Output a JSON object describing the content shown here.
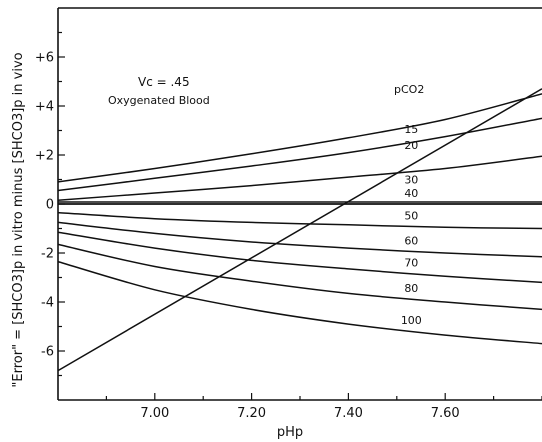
{
  "chart_data": {
    "type": "line",
    "title": "",
    "xlabel": "pHp",
    "ylabel": "\"Error\" = [SHCO3]p in vitro minus [SHCO3]p in vivo",
    "xlim": [
      6.8,
      7.8
    ],
    "ylim": [
      -8,
      8
    ],
    "x_ticks": [
      7.0,
      7.2,
      7.4,
      7.6
    ],
    "x_tick_labels": [
      "7.00",
      "7.20",
      "7.40",
      "7.60"
    ],
    "y_ticks": [
      6,
      4,
      2,
      0,
      -2,
      -4,
      -6
    ],
    "y_tick_labels": [
      "+6",
      "+4",
      "+2",
      "0",
      "-2",
      "-4",
      "-6"
    ],
    "grid": false,
    "legend_title": "pCO2",
    "annotations": [
      "Vc = .45",
      "Oxygenated Blood"
    ],
    "series": [
      {
        "name": "15",
        "x": [
          6.8,
          7.0,
          7.2,
          7.4,
          7.6,
          7.8
        ],
        "y": [
          0.9,
          1.45,
          2.05,
          2.7,
          3.45,
          4.5
        ]
      },
      {
        "name": "20",
        "x": [
          6.8,
          7.0,
          7.2,
          7.4,
          7.6,
          7.8
        ],
        "y": [
          0.55,
          1.05,
          1.55,
          2.1,
          2.75,
          3.5
        ]
      },
      {
        "name": "30",
        "x": [
          6.8,
          7.0,
          7.2,
          7.4,
          7.6,
          7.8
        ],
        "y": [
          0.15,
          0.45,
          0.75,
          1.1,
          1.45,
          1.95
        ]
      },
      {
        "name": "40",
        "x": [
          6.8,
          7.0,
          7.2,
          7.4,
          7.6,
          7.8
        ],
        "y": [
          0.08,
          0.08,
          0.08,
          0.08,
          0.08,
          0.08
        ]
      },
      {
        "name": "50",
        "x": [
          6.8,
          7.0,
          7.2,
          7.4,
          7.6,
          7.8
        ],
        "y": [
          -0.35,
          -0.6,
          -0.75,
          -0.85,
          -0.95,
          -1.0
        ]
      },
      {
        "name": "60",
        "x": [
          6.8,
          7.0,
          7.2,
          7.4,
          7.6,
          7.8
        ],
        "y": [
          -0.75,
          -1.2,
          -1.55,
          -1.8,
          -2.0,
          -2.15
        ]
      },
      {
        "name": "70",
        "x": [
          6.8,
          7.0,
          7.2,
          7.4,
          7.6,
          7.8
        ],
        "y": [
          -1.15,
          -1.8,
          -2.3,
          -2.65,
          -2.95,
          -3.2
        ]
      },
      {
        "name": "80",
        "x": [
          6.8,
          7.0,
          7.2,
          7.4,
          7.6,
          7.8
        ],
        "y": [
          -1.65,
          -2.55,
          -3.15,
          -3.65,
          -4.0,
          -4.3
        ]
      },
      {
        "name": "100",
        "x": [
          6.8,
          7.0,
          7.2,
          7.4,
          7.6,
          7.8
        ],
        "y": [
          -2.35,
          -3.5,
          -4.3,
          -4.9,
          -5.35,
          -5.7
        ]
      },
      {
        "name": "",
        "x": [
          6.8,
          7.8
        ],
        "y": [
          -6.8,
          4.7
        ]
      }
    ]
  }
}
